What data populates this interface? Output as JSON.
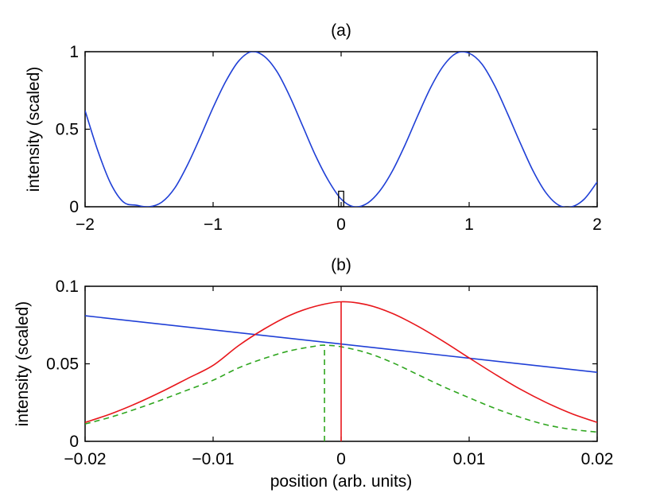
{
  "chart_data": [
    {
      "type": "line",
      "title": "(a)",
      "xlabel": "",
      "ylabel": "intensity (scaled)",
      "xlim": [
        -2,
        2
      ],
      "ylim": [
        0,
        1
      ],
      "xticks": [
        "−2",
        "−1",
        "0",
        "1",
        "2"
      ],
      "yticks": [
        "0",
        "0.5",
        "1"
      ],
      "grid": false,
      "series": [
        {
          "color": "#1f3fd6",
          "style": "solid",
          "x": [
            -2.0,
            -1.9,
            -1.8,
            -1.7,
            -1.6,
            -1.5,
            -1.4,
            -1.3,
            -1.2,
            -1.1,
            -1.0,
            -0.9,
            -0.8,
            -0.7,
            -0.6,
            -0.5,
            -0.4,
            -0.3,
            -0.2,
            -0.1,
            0.0,
            0.1,
            0.2,
            0.3,
            0.4,
            0.5,
            0.6,
            0.7,
            0.8,
            0.9,
            1.0,
            1.1,
            1.2,
            1.3,
            1.4,
            1.5,
            1.6,
            1.7,
            1.8,
            1.9,
            2.0
          ],
          "y": [
            0.62,
            0.36,
            0.15,
            0.03,
            0.01,
            0.0,
            0.03,
            0.12,
            0.27,
            0.45,
            0.64,
            0.81,
            0.94,
            1.0,
            0.97,
            0.87,
            0.71,
            0.52,
            0.33,
            0.17,
            0.05,
            0.0,
            0.02,
            0.1,
            0.23,
            0.4,
            0.59,
            0.77,
            0.91,
            0.99,
            0.99,
            0.92,
            0.78,
            0.6,
            0.41,
            0.23,
            0.09,
            0.01,
            0.0,
            0.05,
            0.16
          ]
        }
      ],
      "annotations": [
        {
          "type": "rectangle",
          "x_range": [
            -0.02,
            0.02
          ],
          "y_range": [
            0,
            0.1
          ],
          "color": "#000000"
        }
      ]
    },
    {
      "type": "line",
      "title": "(b)",
      "xlabel": "position  (arb. units)",
      "ylabel": "intensity (scaled)",
      "xlim": [
        -0.02,
        0.02
      ],
      "ylim": [
        0,
        0.1
      ],
      "xticks": [
        "−0.02",
        "−0.01",
        "0",
        "0.01",
        "0.02"
      ],
      "yticks": [
        "0",
        "0.05",
        "0.1"
      ],
      "grid": false,
      "series": [
        {
          "color": "#1f3fd6",
          "style": "solid",
          "x": [
            -0.02,
            0.02
          ],
          "y": [
            0.081,
            0.0445
          ]
        },
        {
          "color": "#e8161b",
          "style": "solid",
          "x": [
            -0.02,
            -0.018,
            -0.016,
            -0.014,
            -0.012,
            -0.01,
            -0.008,
            -0.006,
            -0.004,
            -0.002,
            0.0,
            0.002,
            0.004,
            0.006,
            0.008,
            0.01,
            0.012,
            0.014,
            0.016,
            0.018,
            0.02
          ],
          "y": [
            0.0122,
            0.0177,
            0.0244,
            0.0321,
            0.0405,
            0.049,
            0.0618,
            0.0725,
            0.0813,
            0.0871,
            0.09,
            0.0881,
            0.0825,
            0.0742,
            0.0644,
            0.0538,
            0.0434,
            0.0336,
            0.0251,
            0.0179,
            0.0122
          ]
        },
        {
          "color": "#2fa61f",
          "style": "dashed",
          "x": [
            -0.02,
            -0.018,
            -0.016,
            -0.014,
            -0.012,
            -0.01,
            -0.008,
            -0.006,
            -0.004,
            -0.002,
            -0.0013,
            0.0,
            0.002,
            0.004,
            0.006,
            0.008,
            0.01,
            0.012,
            0.014,
            0.016,
            0.018,
            0.02
          ],
          "y": [
            0.0112,
            0.0156,
            0.0209,
            0.0268,
            0.0331,
            0.0394,
            0.0474,
            0.0535,
            0.0584,
            0.0614,
            0.062,
            0.061,
            0.0571,
            0.0508,
            0.043,
            0.0352,
            0.0281,
            0.0213,
            0.0155,
            0.0107,
            0.0077,
            0.006
          ]
        }
      ],
      "markers": [
        {
          "color": "#e8161b",
          "style": "solid",
          "x": 0.0,
          "y_top": 0.09
        },
        {
          "color": "#2fa61f",
          "style": "dashed",
          "x": -0.0013,
          "y_top": 0.062
        }
      ]
    }
  ]
}
